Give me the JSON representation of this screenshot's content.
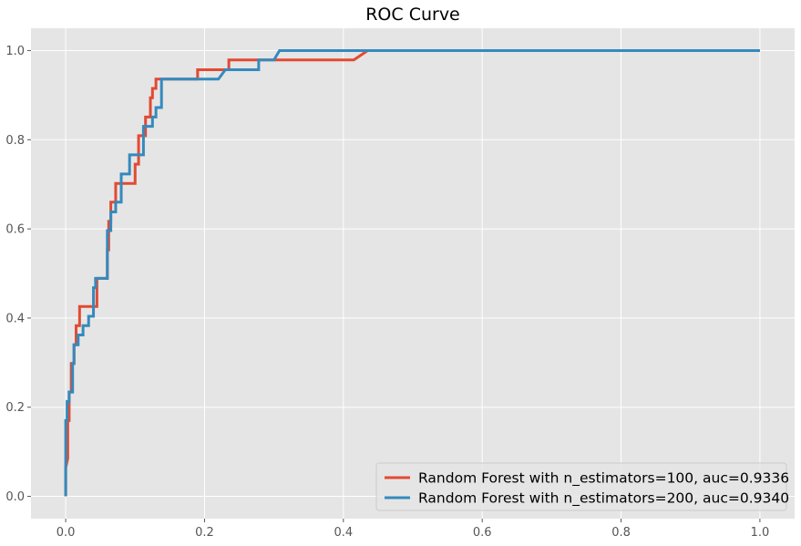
{
  "chart_data": {
    "type": "line",
    "title": "ROC Curve",
    "xlabel": "",
    "ylabel": "",
    "xlim": [
      -0.05,
      1.05
    ],
    "ylim": [
      -0.05,
      1.05
    ],
    "xticks": [
      "0.0",
      "0.2",
      "0.4",
      "0.6",
      "0.8",
      "1.0"
    ],
    "yticks": [
      "0.0",
      "0.2",
      "0.4",
      "0.6",
      "0.8",
      "1.0"
    ],
    "grid": true,
    "legend_position": "lower-right",
    "series": [
      {
        "name": "Random Forest with n_estimators=100, auc=0.9336",
        "color": "#E24A33",
        "x": [
          0.0,
          0.0,
          0.003,
          0.003,
          0.005,
          0.005,
          0.008,
          0.008,
          0.012,
          0.012,
          0.015,
          0.015,
          0.02,
          0.02,
          0.028,
          0.028,
          0.045,
          0.045,
          0.06,
          0.06,
          0.062,
          0.062,
          0.065,
          0.065,
          0.072,
          0.072,
          0.078,
          0.078,
          0.1,
          0.1,
          0.105,
          0.105,
          0.115,
          0.115,
          0.122,
          0.122,
          0.125,
          0.125,
          0.13,
          0.13,
          0.14,
          0.14,
          0.19,
          0.19,
          0.235,
          0.235,
          0.415,
          0.435,
          1.0
        ],
        "y": [
          0.0,
          0.064,
          0.085,
          0.17,
          0.17,
          0.234,
          0.234,
          0.298,
          0.298,
          0.34,
          0.34,
          0.383,
          0.383,
          0.426,
          0.426,
          0.426,
          0.426,
          0.489,
          0.489,
          0.553,
          0.553,
          0.617,
          0.617,
          0.66,
          0.66,
          0.702,
          0.702,
          0.702,
          0.702,
          0.745,
          0.745,
          0.809,
          0.809,
          0.851,
          0.851,
          0.894,
          0.894,
          0.915,
          0.915,
          0.936,
          0.936,
          0.936,
          0.936,
          0.957,
          0.957,
          0.979,
          0.979,
          1.0,
          1.0
        ]
      },
      {
        "name": "Random Forest with n_estimators=200, auc=0.9340",
        "color": "#348ABD",
        "x": [
          0.0,
          0.0,
          0.002,
          0.002,
          0.005,
          0.005,
          0.01,
          0.01,
          0.012,
          0.012,
          0.018,
          0.018,
          0.025,
          0.025,
          0.033,
          0.033,
          0.04,
          0.04,
          0.043,
          0.043,
          0.06,
          0.06,
          0.065,
          0.065,
          0.072,
          0.072,
          0.08,
          0.08,
          0.092,
          0.092,
          0.112,
          0.112,
          0.125,
          0.125,
          0.13,
          0.13,
          0.138,
          0.138,
          0.22,
          0.23,
          0.278,
          0.278,
          0.3,
          0.308,
          1.0
        ],
        "y": [
          0.0,
          0.17,
          0.17,
          0.213,
          0.213,
          0.234,
          0.234,
          0.298,
          0.298,
          0.34,
          0.34,
          0.362,
          0.362,
          0.383,
          0.383,
          0.404,
          0.404,
          0.468,
          0.468,
          0.489,
          0.489,
          0.596,
          0.596,
          0.638,
          0.638,
          0.66,
          0.66,
          0.723,
          0.723,
          0.766,
          0.766,
          0.83,
          0.83,
          0.851,
          0.851,
          0.872,
          0.872,
          0.936,
          0.936,
          0.957,
          0.957,
          0.979,
          0.979,
          1.0,
          1.0
        ]
      }
    ]
  }
}
